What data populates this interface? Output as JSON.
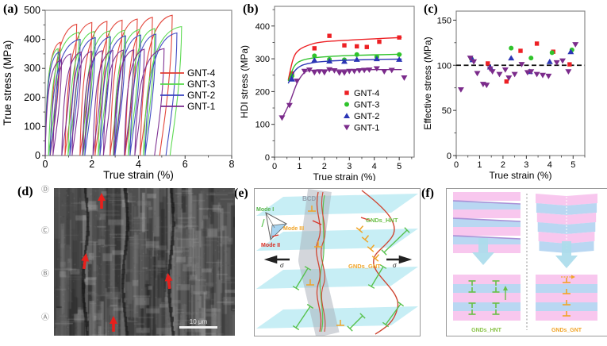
{
  "figure": {
    "panels": {
      "a": "(a)",
      "b": "(b)",
      "c": "(c)",
      "d": "(d)",
      "e": "(e)",
      "f": "(f)"
    }
  },
  "colors": {
    "gnt4_line": "#e23c30",
    "gnt3_line": "#55d84a",
    "gnt2_line": "#3a43c0",
    "gnt1_line": "#7a2a8e",
    "gnt4_marker": "#ed2024",
    "gnt3_marker": "#2fc32b",
    "gnt2_marker": "#2b35b5",
    "gnt1_marker": "#7b2b8b",
    "dashed_reference": "#111111",
    "micrograph_arrow": "#e8201c",
    "plane_cyan": "#c7eef5",
    "stripe_pink": "#f8c7ee",
    "stripe_blue": "#b9d7f2",
    "gnds_hnt_green": "#6abf45",
    "gnds_gnt_orange": "#f0a428"
  },
  "chart_data": [
    {
      "id": "a",
      "type": "line",
      "title": "",
      "xlabel": "True strain (%)",
      "ylabel": "True stress (MPa)",
      "xlim": [
        0,
        8
      ],
      "ylim": [
        0,
        500
      ],
      "xticks": [
        0,
        2,
        4,
        6,
        8
      ],
      "yticks": [
        0,
        100,
        200,
        300,
        400,
        500
      ],
      "grid": false,
      "legend_position": "inside-right",
      "description": "Cyclic loading-unloading tensile hysteresis loops; cycle peak (strain %, stress MPa) per series",
      "series": [
        {
          "name": "GNT-4",
          "color": "#e23c30",
          "cycles": [
            [
              0.65,
              390
            ],
            [
              1.35,
              452
            ],
            [
              2.0,
              458
            ],
            [
              2.65,
              462
            ],
            [
              3.3,
              466
            ],
            [
              3.95,
              470
            ],
            [
              4.6,
              476
            ],
            [
              5.45,
              483
            ]
          ]
        },
        {
          "name": "GNT-3",
          "color": "#55d84a",
          "cycles": [
            [
              0.55,
              368
            ],
            [
              1.45,
              424
            ],
            [
              2.1,
              427
            ],
            [
              2.75,
              429
            ],
            [
              3.4,
              431
            ],
            [
              4.05,
              434
            ],
            [
              4.7,
              437
            ],
            [
              5.85,
              444
            ]
          ]
        },
        {
          "name": "GNT-2",
          "color": "#3a43c0",
          "cycles": [
            [
              0.6,
              356
            ],
            [
              1.5,
              400
            ],
            [
              2.15,
              406
            ],
            [
              2.8,
              409
            ],
            [
              3.45,
              412
            ],
            [
              4.1,
              415
            ],
            [
              4.75,
              418
            ],
            [
              5.65,
              422
            ]
          ]
        },
        {
          "name": "GNT-1",
          "color": "#7a2a8e",
          "cycles": [
            [
              0.7,
              330
            ],
            [
              1.1,
              350
            ],
            [
              1.55,
              356
            ],
            [
              2.0,
              359
            ],
            [
              2.45,
              361
            ],
            [
              2.9,
              362
            ],
            [
              3.35,
              363
            ],
            [
              3.8,
              364
            ],
            [
              4.25,
              366
            ],
            [
              5.1,
              368
            ]
          ]
        }
      ]
    },
    {
      "id": "b",
      "type": "scatter",
      "title": "",
      "xlabel": "True strain (%)",
      "ylabel": "HDI stress (MPa)",
      "xlim": [
        0,
        5.6
      ],
      "ylim": [
        0,
        460
      ],
      "xticks": [
        0,
        1,
        2,
        3,
        4,
        5
      ],
      "yticks": [
        0,
        100,
        200,
        300,
        400
      ],
      "grid": false,
      "legend_position": "inside-bottom-right",
      "series": [
        {
          "name": "GNT-4",
          "marker": "square",
          "color": "#ed2024",
          "points": [
            [
              0.7,
              255
            ],
            [
              1.6,
              332
            ],
            [
              2.2,
              370
            ],
            [
              2.8,
              341
            ],
            [
              3.3,
              338
            ],
            [
              3.7,
              336
            ],
            [
              4.2,
              352
            ],
            [
              5.0,
              365
            ]
          ],
          "fit": [
            [
              0.55,
              235
            ],
            [
              0.75,
              300
            ],
            [
              1.0,
              328
            ],
            [
              1.5,
              345
            ],
            [
              2.0,
              352
            ],
            [
              3.0,
              357
            ],
            [
              4.0,
              361
            ],
            [
              5.1,
              365
            ]
          ]
        },
        {
          "name": "GNT-3",
          "marker": "circle",
          "color": "#2fc32b",
          "points": [
            [
              0.7,
              248
            ],
            [
              1.6,
              309
            ],
            [
              2.2,
              298
            ],
            [
              2.8,
              297
            ],
            [
              3.3,
              313
            ],
            [
              4.1,
              306
            ],
            [
              5.0,
              313
            ]
          ],
          "fit": [
            [
              0.55,
              232
            ],
            [
              0.8,
              278
            ],
            [
              1.1,
              295
            ],
            [
              1.6,
              303
            ],
            [
              2.2,
              307
            ],
            [
              3.0,
              310
            ],
            [
              4.0,
              312
            ],
            [
              5.1,
              314
            ]
          ]
        },
        {
          "name": "GNT-2",
          "marker": "triangle-up",
          "color": "#2b35b5",
          "points": [
            [
              0.7,
              238
            ],
            [
              1.6,
              296
            ],
            [
              2.2,
              293
            ],
            [
              2.8,
              292
            ],
            [
              3.3,
              298
            ],
            [
              4.1,
              300
            ],
            [
              5.0,
              298
            ]
          ],
          "fit": [
            [
              0.55,
              225
            ],
            [
              0.8,
              262
            ],
            [
              1.1,
              280
            ],
            [
              1.6,
              289
            ],
            [
              2.2,
              293
            ],
            [
              3.0,
              296
            ],
            [
              4.0,
              298
            ],
            [
              5.1,
              299
            ]
          ]
        },
        {
          "name": "GNT-1",
          "marker": "triangle-down",
          "color": "#7b2b8b",
          "points": [
            [
              0.3,
              120
            ],
            [
              0.6,
              158
            ],
            [
              0.9,
              232
            ],
            [
              1.2,
              262
            ],
            [
              1.4,
              266
            ],
            [
              1.6,
              258
            ],
            [
              1.8,
              261
            ],
            [
              2.0,
              258
            ],
            [
              2.2,
              267
            ],
            [
              2.4,
              264
            ],
            [
              2.6,
              257
            ],
            [
              2.8,
              257
            ],
            [
              3.0,
              262
            ],
            [
              3.2,
              262
            ],
            [
              3.4,
              264
            ],
            [
              3.6,
              265
            ],
            [
              3.8,
              266
            ],
            [
              4.1,
              270
            ],
            [
              4.4,
              261
            ],
            [
              4.7,
              265
            ],
            [
              5.2,
              242
            ]
          ],
          "fit": [
            [
              0.3,
              118
            ],
            [
              0.6,
              165
            ],
            [
              0.9,
              225
            ],
            [
              1.2,
              258
            ],
            [
              1.5,
              265
            ],
            [
              2.0,
              266
            ],
            [
              3.0,
              266
            ],
            [
              4.0,
              267
            ],
            [
              5.1,
              267
            ]
          ]
        }
      ]
    },
    {
      "id": "c",
      "type": "scatter",
      "title": "",
      "xlabel": "True strain (%)",
      "ylabel": "Effective stress (MPa)",
      "xlim": [
        0,
        5.5
      ],
      "ylim": [
        0,
        160
      ],
      "xticks": [
        0,
        1,
        2,
        3,
        4,
        5
      ],
      "yticks": [
        0,
        50,
        100,
        150
      ],
      "grid": false,
      "dashed_line_y": 100,
      "legend_position": "none",
      "series": [
        {
          "name": "GNT-4",
          "marker": "square",
          "color": "#ed2024",
          "points": [
            [
              1.35,
              102
            ],
            [
              2.15,
              82
            ],
            [
              2.75,
              116
            ],
            [
              3.45,
              124
            ],
            [
              4.15,
              115
            ],
            [
              4.85,
              101
            ]
          ]
        },
        {
          "name": "GNT-3",
          "marker": "circle",
          "color": "#2fc32b",
          "points": [
            [
              0.65,
              107
            ],
            [
              2.35,
              119
            ],
            [
              3.2,
              108
            ],
            [
              4.1,
              114
            ],
            [
              4.95,
              117
            ]
          ]
        },
        {
          "name": "GNT-2",
          "marker": "triangle-up",
          "color": "#2b35b5",
          "points": [
            [
              0.7,
              106
            ],
            [
              1.45,
              98
            ],
            [
              2.35,
              108
            ],
            [
              3.15,
              93
            ],
            [
              4.0,
              104
            ],
            [
              4.9,
              115
            ]
          ]
        },
        {
          "name": "GNT-1",
          "marker": "triangle-down",
          "color": "#7b2b8b",
          "points": [
            [
              0.2,
              73
            ],
            [
              0.6,
              108
            ],
            [
              0.75,
              104
            ],
            [
              0.9,
              91
            ],
            [
              1.15,
              79
            ],
            [
              1.3,
              78
            ],
            [
              1.45,
              96
            ],
            [
              1.55,
              93
            ],
            [
              1.85,
              90
            ],
            [
              2.1,
              95
            ],
            [
              2.25,
              86
            ],
            [
              2.5,
              90
            ],
            [
              2.8,
              101
            ],
            [
              3.05,
              92
            ],
            [
              3.2,
              93
            ],
            [
              3.45,
              90
            ],
            [
              3.7,
              89
            ],
            [
              3.95,
              88
            ],
            [
              4.3,
              103
            ],
            [
              4.55,
              105
            ],
            [
              4.8,
              93
            ],
            [
              5.1,
              123
            ]
          ]
        }
      ]
    }
  ],
  "panel_d": {
    "scale_bar": "10 μm",
    "region_labels": [
      "Ⓓ",
      "Ⓒ",
      "Ⓑ",
      "Ⓐ"
    ]
  },
  "panel_e": {
    "labels": {
      "bcd": "BCD",
      "mode1": "Mode I",
      "mode2": "Mode II",
      "mode3": "Mode III",
      "gnds_hnt": "GNDs_HNT",
      "gnds_gnt": "GNDs_GNT",
      "sigma": "σ"
    }
  },
  "panel_f": {
    "left_label": "GNDs_HNT",
    "right_label": "GNDs_GNT"
  }
}
